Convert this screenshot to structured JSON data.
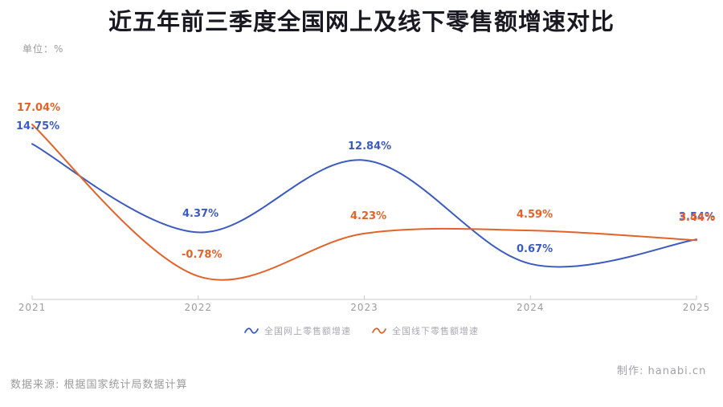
{
  "title": "近五年前三季度全国网上及线下零售额增速对比",
  "unit_label": "单位：%",
  "colors": {
    "online_blue": "#3b5bbf",
    "offline_orange": "#e2632a",
    "axis_line": "#c9c9c9",
    "tick_text": "#9b9b9b",
    "title_text": "#191921",
    "muted_text": "#a8a8b0"
  },
  "chart_data": {
    "type": "line",
    "x": [
      2021,
      2022,
      2023,
      2024,
      2025
    ],
    "series": [
      {
        "name": "全国网上零售额增速",
        "color": "#3b5bbf",
        "values": [
          14.75,
          4.37,
          12.84,
          0.67,
          3.54
        ]
      },
      {
        "name": "全国线下零售额增速",
        "color": "#e2632a",
        "values": [
          17.04,
          -0.78,
          4.23,
          4.59,
          3.44
        ]
      }
    ],
    "title": "近五年前三季度全国网上及线下零售额增速对比",
    "xlabel": "",
    "ylabel": "单位：%",
    "ylim": [
      -3,
      19
    ],
    "grid": false,
    "smooth": true,
    "legend_position": "bottom",
    "point_labels": [
      "14.75%",
      "4.37%",
      "12.84%",
      "0.67%",
      "3.54%",
      "17.04%",
      "-0.78%",
      "4.23%",
      "4.59%",
      "3.44%"
    ]
  },
  "x_axis": {
    "tick_labels": [
      "2021",
      "2022",
      "2023",
      "2024",
      "2025"
    ]
  },
  "legend": {
    "items": [
      {
        "label": "全国网上零售额增速",
        "marker": "wave-icon",
        "color": "#3b5bbf"
      },
      {
        "label": "全国线下零售额增速",
        "marker": "wave-icon",
        "color": "#e2632a"
      }
    ]
  },
  "footer": {
    "source": "数据来源: 根据国家统计局数据计算",
    "credit": "制作: hanabi.cn"
  }
}
